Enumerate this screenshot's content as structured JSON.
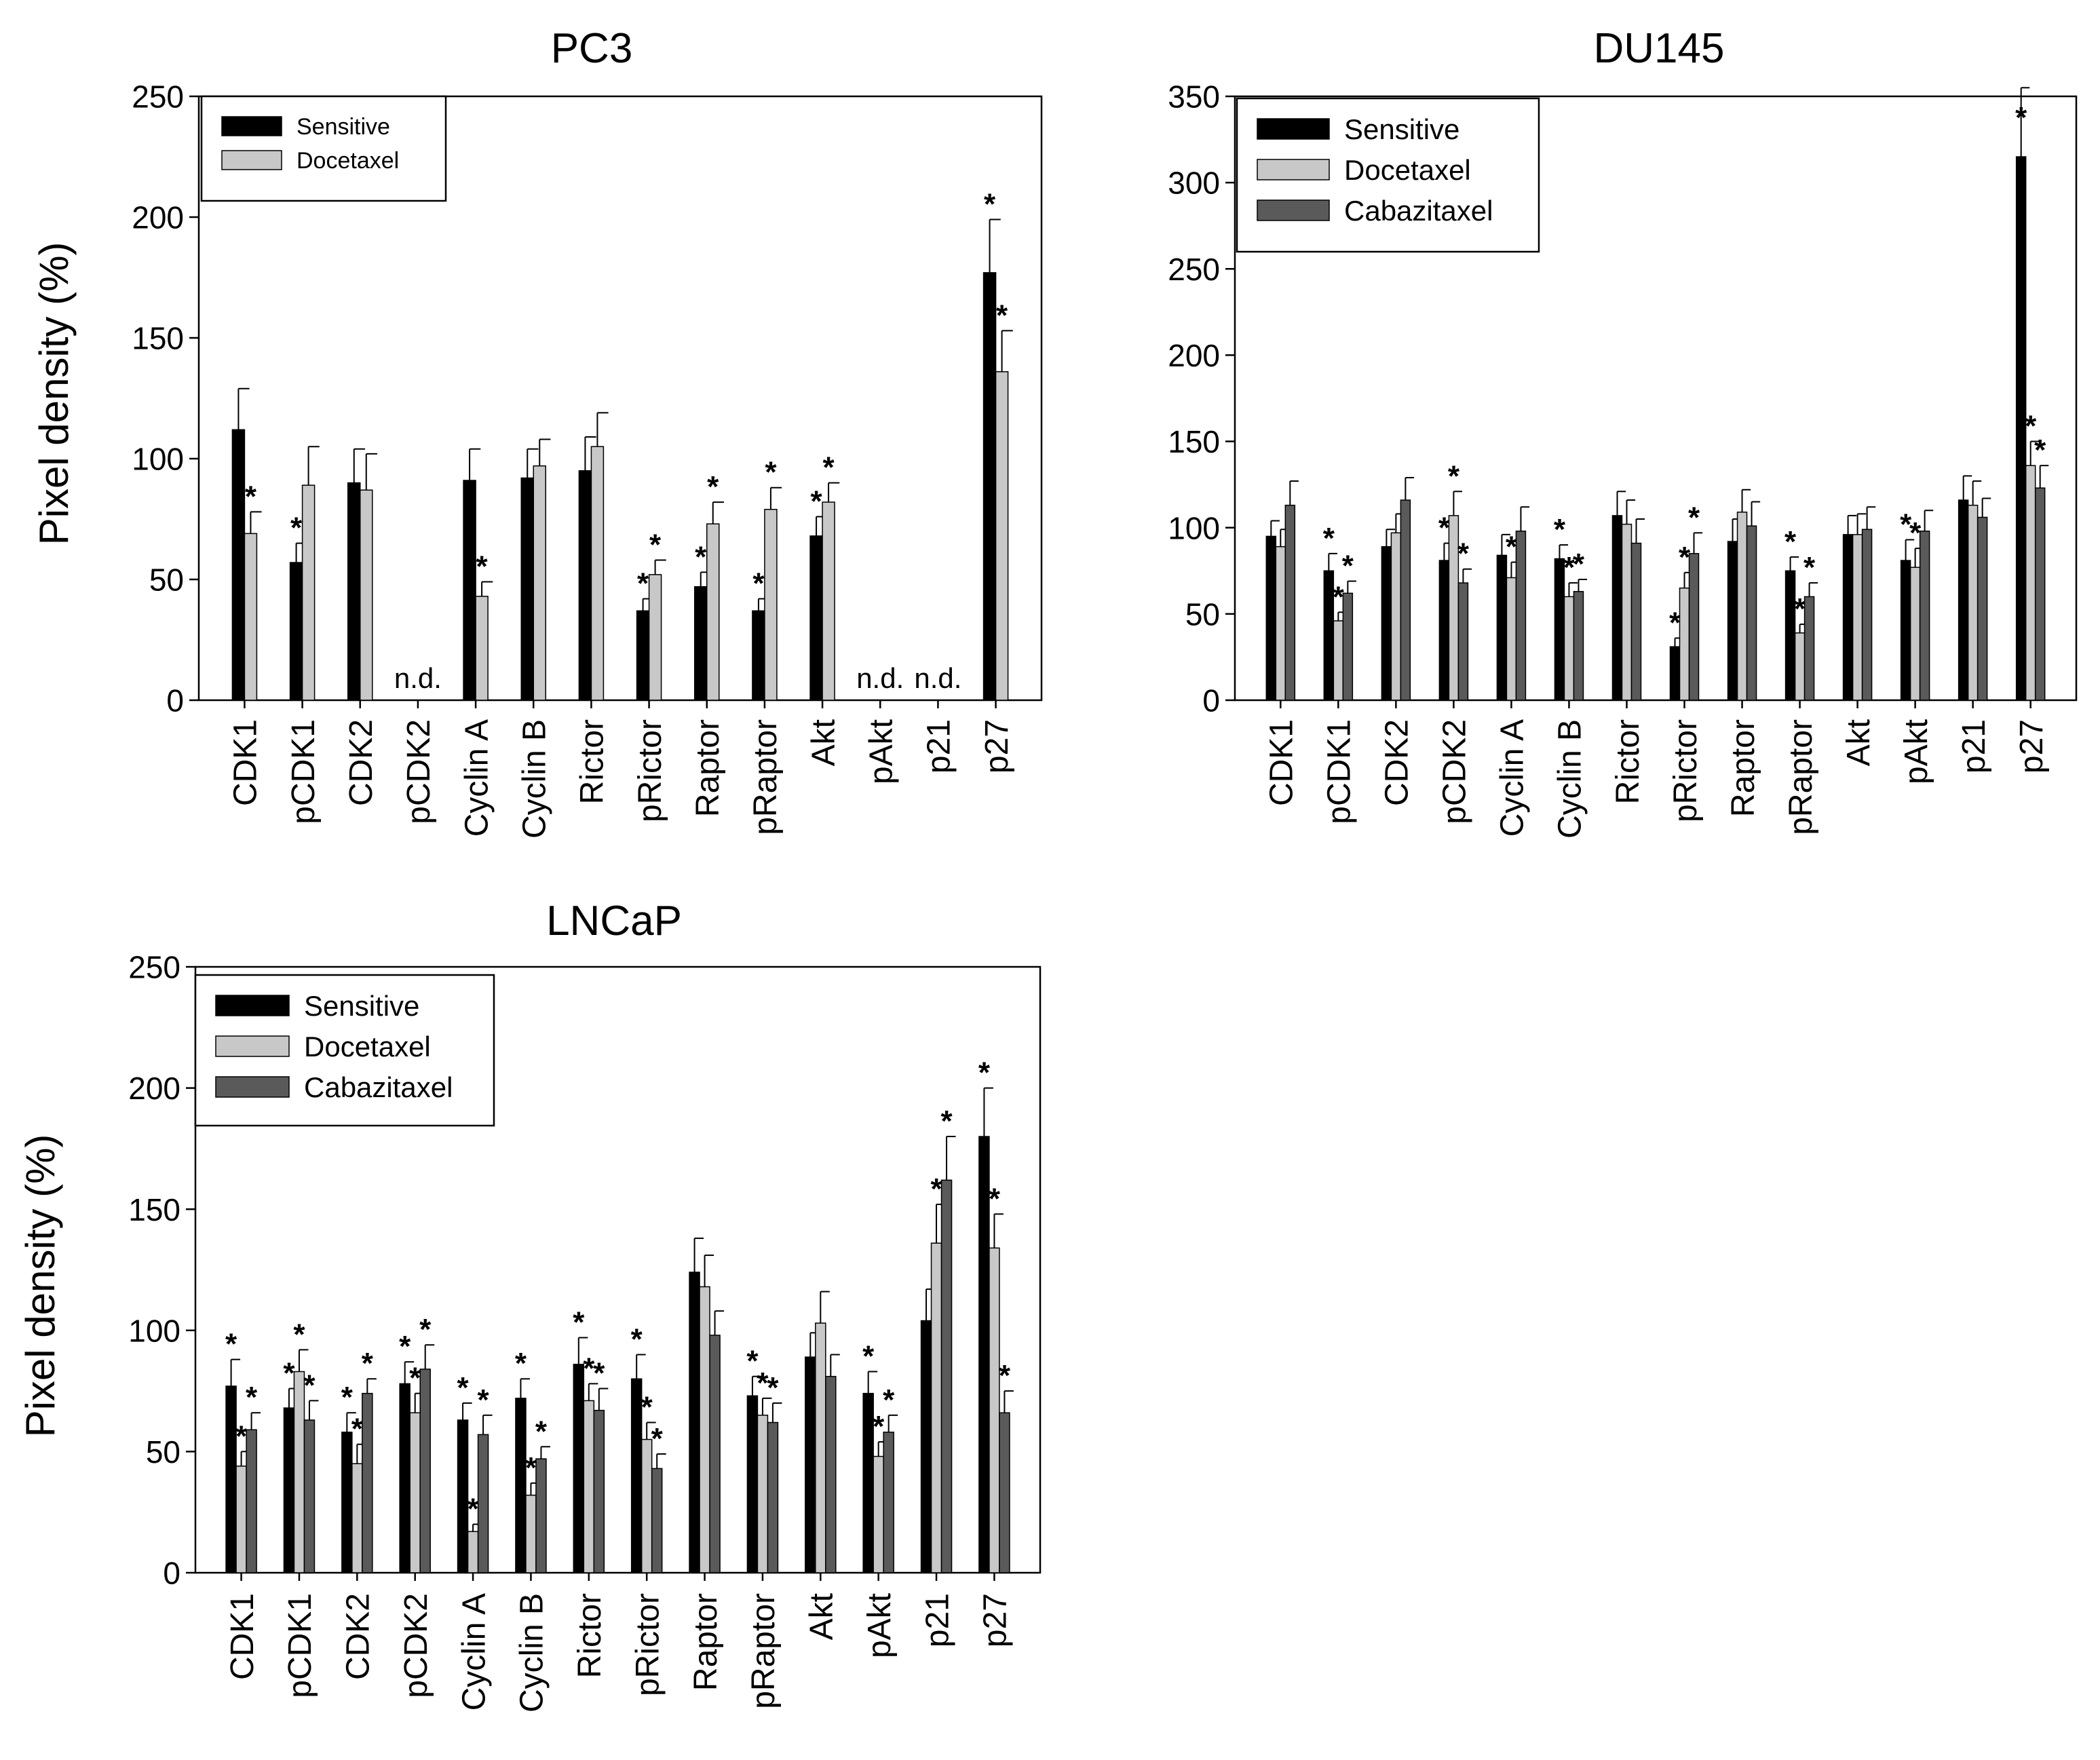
{
  "colors": {
    "sensitive": "#000000",
    "docetaxel": "#c8c8c8",
    "cabazitaxel": "#5a5a5a",
    "axis": "#000000",
    "background": "#ffffff"
  },
  "chart_data": [
    {
      "id": "pc3",
      "type": "bar",
      "title": "PC3",
      "ylabel": "Pixel density (%)",
      "xlabel": "",
      "ylim": [
        0,
        250
      ],
      "yticks": [
        0,
        50,
        100,
        150,
        200,
        250
      ],
      "legend_position": "top-left",
      "categories": [
        "CDK1",
        "pCDK1",
        "CDK2",
        "pCDK2",
        "Cyclin A",
        "Cyclin B",
        "Rictor",
        "pRictor",
        "Raptor",
        "pRaptor",
        "Akt",
        "pAkt",
        "p21",
        "p27"
      ],
      "series": [
        {
          "name": "Sensitive",
          "color_key": "sensitive",
          "values": [
            112,
            57,
            90,
            null,
            91,
            92,
            95,
            37,
            47,
            37,
            68,
            null,
            null,
            177
          ],
          "errors": [
            17,
            8,
            14,
            null,
            13,
            12,
            14,
            5,
            6,
            5,
            8,
            null,
            null,
            22
          ],
          "sig": [
            false,
            true,
            false,
            false,
            false,
            false,
            false,
            true,
            true,
            true,
            true,
            false,
            false,
            true
          ]
        },
        {
          "name": "Docetaxel",
          "color_key": "docetaxel",
          "values": [
            69,
            89,
            87,
            null,
            43,
            97,
            105,
            52,
            73,
            79,
            82,
            null,
            null,
            136
          ],
          "errors": [
            9,
            16,
            15,
            null,
            6,
            11,
            14,
            6,
            9,
            9,
            8,
            null,
            null,
            17
          ],
          "sig": [
            true,
            false,
            false,
            false,
            true,
            false,
            false,
            true,
            true,
            true,
            true,
            false,
            false,
            true
          ]
        }
      ],
      "annotations": [
        {
          "category": "pCDK2",
          "text": "n.d."
        },
        {
          "category": "pAkt",
          "text": "n.d."
        },
        {
          "category": "p21",
          "text": "n.d."
        }
      ],
      "sig_marker": "*"
    },
    {
      "id": "du145",
      "type": "bar",
      "title": "DU145",
      "ylabel": "",
      "xlabel": "",
      "ylim": [
        0,
        350
      ],
      "yticks": [
        0,
        50,
        100,
        150,
        200,
        250,
        300,
        350
      ],
      "legend_position": "top-left",
      "categories": [
        "CDK1",
        "pCDK1",
        "CDK2",
        "pCDK2",
        "Cyclin A",
        "Cyclin B",
        "Rictor",
        "pRictor",
        "Raptor",
        "pRaptor",
        "Akt",
        "pAkt",
        "p21",
        "p27"
      ],
      "series": [
        {
          "name": "Sensitive",
          "color_key": "sensitive",
          "values": [
            95,
            75,
            89,
            81,
            84,
            82,
            107,
            31,
            92,
            75,
            96,
            81,
            116,
            315
          ],
          "errors": [
            9,
            10,
            10,
            10,
            12,
            8,
            14,
            5,
            13,
            8,
            11,
            12,
            14,
            40
          ],
          "sig": [
            false,
            true,
            false,
            true,
            false,
            true,
            false,
            true,
            false,
            true,
            false,
            true,
            false,
            true
          ]
        },
        {
          "name": "Docetaxel",
          "color_key": "docetaxel",
          "values": [
            89,
            46,
            97,
            107,
            71,
            60,
            102,
            65,
            109,
            39,
            96,
            77,
            113,
            136
          ],
          "errors": [
            10,
            5,
            11,
            14,
            9,
            8,
            14,
            9,
            13,
            5,
            12,
            11,
            14,
            14
          ],
          "sig": [
            false,
            true,
            false,
            true,
            true,
            true,
            false,
            true,
            false,
            true,
            false,
            true,
            false,
            true
          ]
        },
        {
          "name": "Cabazitaxel",
          "color_key": "cabazitaxel",
          "values": [
            113,
            62,
            116,
            68,
            98,
            63,
            91,
            85,
            101,
            60,
            99,
            98,
            106,
            123
          ],
          "errors": [
            14,
            7,
            13,
            8,
            14,
            7,
            14,
            12,
            14,
            8,
            13,
            12,
            11,
            13
          ],
          "sig": [
            false,
            true,
            false,
            true,
            false,
            true,
            false,
            true,
            false,
            true,
            false,
            false,
            false,
            true
          ]
        }
      ],
      "annotations": [],
      "sig_marker": "*"
    },
    {
      "id": "lncap",
      "type": "bar",
      "title": "LNCaP",
      "ylabel": "Pixel density (%)",
      "xlabel": "",
      "ylim": [
        0,
        250
      ],
      "yticks": [
        0,
        50,
        100,
        150,
        200,
        250
      ],
      "legend_position": "top-left",
      "categories": [
        "CDK1",
        "pCDK1",
        "CDK2",
        "pCDK2",
        "Cyclin A",
        "Cyclin B",
        "Rictor",
        "pRictor",
        "Raptor",
        "pRaptor",
        "Akt",
        "pAkt",
        "p21",
        "p27"
      ],
      "series": [
        {
          "name": "Sensitive",
          "color_key": "sensitive",
          "values": [
            77,
            68,
            58,
            78,
            63,
            72,
            86,
            80,
            124,
            73,
            89,
            74,
            104,
            180
          ],
          "errors": [
            11,
            8,
            8,
            9,
            7,
            8,
            11,
            10,
            14,
            8,
            10,
            9,
            13,
            20
          ],
          "sig": [
            true,
            true,
            true,
            true,
            true,
            true,
            true,
            true,
            false,
            true,
            false,
            true,
            false,
            true
          ]
        },
        {
          "name": "Docetaxel",
          "color_key": "docetaxel",
          "values": [
            44,
            83,
            45,
            66,
            17,
            32,
            71,
            55,
            118,
            65,
            103,
            48,
            136,
            134
          ],
          "errors": [
            6,
            9,
            8,
            8,
            3,
            5,
            7,
            7,
            13,
            7,
            13,
            6,
            16,
            14
          ],
          "sig": [
            true,
            true,
            true,
            true,
            true,
            true,
            true,
            true,
            false,
            true,
            false,
            true,
            true,
            true
          ]
        },
        {
          "name": "Cabazitaxel",
          "color_key": "cabazitaxel",
          "values": [
            59,
            63,
            74,
            84,
            57,
            47,
            67,
            43,
            98,
            62,
            81,
            58,
            162,
            66
          ],
          "errors": [
            7,
            8,
            6,
            10,
            8,
            5,
            9,
            6,
            10,
            8,
            9,
            7,
            18,
            9
          ],
          "sig": [
            true,
            true,
            true,
            true,
            true,
            true,
            true,
            true,
            false,
            true,
            false,
            true,
            true,
            true
          ]
        }
      ],
      "annotations": [],
      "sig_marker": "*"
    }
  ]
}
